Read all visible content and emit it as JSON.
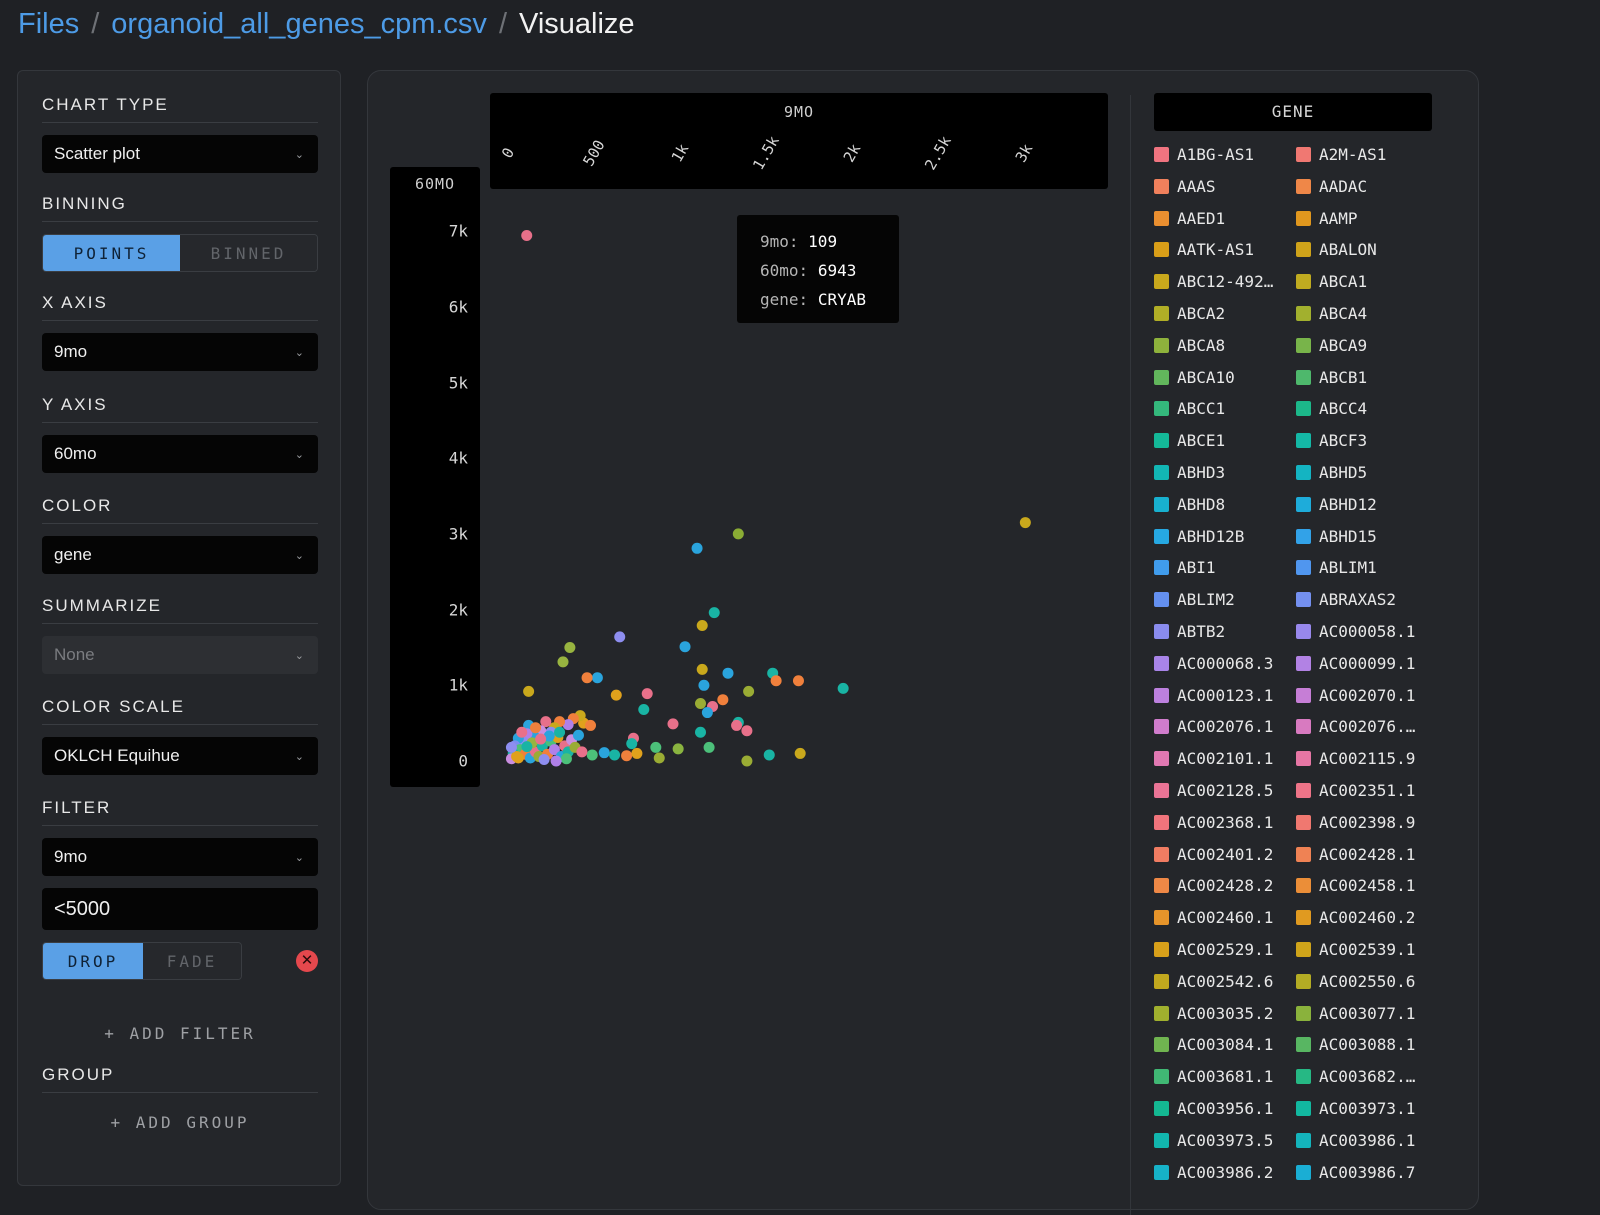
{
  "breadcrumb": {
    "files": "Files",
    "sep1": "/",
    "file": "organoid_all_genes_cpm.csv",
    "sep2": "/",
    "current": "Visualize"
  },
  "sidebar": {
    "chart_type": {
      "title": "CHART TYPE",
      "value": "Scatter plot"
    },
    "binning": {
      "title": "BINNING",
      "options": [
        "POINTS",
        "BINNED"
      ],
      "selected": "POINTS"
    },
    "x_axis": {
      "title": "X AXIS",
      "value": "9mo"
    },
    "y_axis": {
      "title": "Y AXIS",
      "value": "60mo"
    },
    "color": {
      "title": "COLOR",
      "value": "gene"
    },
    "summarize": {
      "title": "SUMMARIZE",
      "value": "None"
    },
    "color_scale": {
      "title": "COLOR SCALE",
      "value": "OKLCH Equihue"
    },
    "filter": {
      "title": "FILTER",
      "column": "9mo",
      "expression": "<5000",
      "modes": [
        "DROP",
        "FADE"
      ],
      "selected_mode": "DROP",
      "remove_icon": "close-icon",
      "add_label": "+ ADD FILTER"
    },
    "group": {
      "title": "GROUP",
      "add_label": "+ ADD GROUP"
    }
  },
  "tooltip": {
    "k1": "9mo:",
    "v1": "109",
    "k2": "60mo:",
    "v2": "6943",
    "k3": "gene:",
    "v3": "CRYAB"
  },
  "chart_data": {
    "type": "scatter",
    "xlabel": "9MO",
    "ylabel": "60MO",
    "xlim": [
      0,
      3200
    ],
    "ylim": [
      0,
      7200
    ],
    "x_ticks": [
      "0",
      "500",
      "1k",
      "1.5k",
      "2k",
      "2.5k",
      "3k"
    ],
    "y_ticks": [
      "7k",
      "6k",
      "5k",
      "4k",
      "3k",
      "2k",
      "1k",
      "0"
    ],
    "points": [
      {
        "x": 109,
        "y": 6943,
        "color": "#e8708a"
      },
      {
        "x": 3010,
        "y": 3150,
        "color": "#c9a81c"
      },
      {
        "x": 1340,
        "y": 3000,
        "color": "#8aac34"
      },
      {
        "x": 1100,
        "y": 2810,
        "color": "#2aa4dd"
      },
      {
        "x": 1200,
        "y": 1960,
        "color": "#19b4a4"
      },
      {
        "x": 1130,
        "y": 1790,
        "color": "#c9a81c"
      },
      {
        "x": 650,
        "y": 1640,
        "color": "#8e8ef0"
      },
      {
        "x": 1030,
        "y": 1510,
        "color": "#2aa4dd"
      },
      {
        "x": 360,
        "y": 1500,
        "color": "#98b440"
      },
      {
        "x": 320,
        "y": 1310,
        "color": "#98b440"
      },
      {
        "x": 1540,
        "y": 1160,
        "color": "#19b4a4"
      },
      {
        "x": 1950,
        "y": 960,
        "color": "#19b4a4"
      },
      {
        "x": 1130,
        "y": 1210,
        "color": "#c9a81c"
      },
      {
        "x": 1280,
        "y": 1160,
        "color": "#2aa4dd"
      },
      {
        "x": 520,
        "y": 1100,
        "color": "#2aa4dd"
      },
      {
        "x": 1690,
        "y": 1060,
        "color": "#f0803c"
      },
      {
        "x": 1560,
        "y": 1060,
        "color": "#f0803c"
      },
      {
        "x": 1140,
        "y": 1000,
        "color": "#2aa4dd"
      },
      {
        "x": 1400,
        "y": 920,
        "color": "#9aac34"
      },
      {
        "x": 460,
        "y": 1100,
        "color": "#f0803c"
      },
      {
        "x": 810,
        "y": 890,
        "color": "#e8708a"
      },
      {
        "x": 630,
        "y": 870,
        "color": "#e0a11c"
      },
      {
        "x": 120,
        "y": 920,
        "color": "#c9a81c"
      },
      {
        "x": 1250,
        "y": 810,
        "color": "#f0803c"
      },
      {
        "x": 790,
        "y": 680,
        "color": "#19b4a4"
      },
      {
        "x": 1120,
        "y": 760,
        "color": "#9aac34"
      },
      {
        "x": 1190,
        "y": 720,
        "color": "#e8708a"
      },
      {
        "x": 1160,
        "y": 640,
        "color": "#2aa4dd"
      },
      {
        "x": 960,
        "y": 490,
        "color": "#e8708a"
      },
      {
        "x": 1340,
        "y": 510,
        "color": "#19b4a4"
      },
      {
        "x": 1330,
        "y": 470,
        "color": "#e8708a"
      },
      {
        "x": 1120,
        "y": 380,
        "color": "#19b4a4"
      },
      {
        "x": 1390,
        "y": 400,
        "color": "#e8708a"
      },
      {
        "x": 730,
        "y": 300,
        "color": "#e8708a"
      },
      {
        "x": 720,
        "y": 230,
        "color": "#19b4a4"
      },
      {
        "x": 860,
        "y": 180,
        "color": "#4cc07a"
      },
      {
        "x": 990,
        "y": 160,
        "color": "#8ab440"
      },
      {
        "x": 1170,
        "y": 180,
        "color": "#4cc07a"
      },
      {
        "x": 690,
        "y": 70,
        "color": "#f0803c"
      },
      {
        "x": 750,
        "y": 100,
        "color": "#e0a11c"
      },
      {
        "x": 880,
        "y": 40,
        "color": "#9aac34"
      },
      {
        "x": 1390,
        "y": 0,
        "color": "#9aac34"
      },
      {
        "x": 1520,
        "y": 80,
        "color": "#19b4a4"
      },
      {
        "x": 1700,
        "y": 100,
        "color": "#c9a81c"
      },
      {
        "x": 560,
        "y": 110,
        "color": "#2aa4dd"
      },
      {
        "x": 620,
        "y": 80,
        "color": "#19b4a4"
      },
      {
        "x": 490,
        "y": 80,
        "color": "#4cc07a"
      },
      {
        "x": 440,
        "y": 500,
        "color": "#e0a11c"
      },
      {
        "x": 480,
        "y": 470,
        "color": "#f0803c"
      },
      {
        "x": 420,
        "y": 600,
        "color": "#c9a81c"
      },
      {
        "x": 380,
        "y": 560,
        "color": "#f0803c"
      },
      {
        "x": 350,
        "y": 480,
        "color": "#b080e8"
      },
      {
        "x": 300,
        "y": 520,
        "color": "#f0803c"
      },
      {
        "x": 270,
        "y": 440,
        "color": "#c9a81c"
      },
      {
        "x": 250,
        "y": 380,
        "color": "#8e8ef0"
      },
      {
        "x": 220,
        "y": 520,
        "color": "#e8708a"
      },
      {
        "x": 190,
        "y": 400,
        "color": "#c98ee0"
      },
      {
        "x": 150,
        "y": 330,
        "color": "#2aa4dd"
      },
      {
        "x": 120,
        "y": 470,
        "color": "#2aa4dd"
      },
      {
        "x": 110,
        "y": 360,
        "color": "#b080e8"
      },
      {
        "x": 90,
        "y": 250,
        "color": "#8e8ef0"
      },
      {
        "x": 60,
        "y": 300,
        "color": "#2aa4dd"
      },
      {
        "x": 40,
        "y": 200,
        "color": "#7b8ef0"
      },
      {
        "x": 70,
        "y": 150,
        "color": "#4cc07a"
      },
      {
        "x": 30,
        "y": 100,
        "color": "#19b4a4"
      },
      {
        "x": 20,
        "y": 30,
        "color": "#c98ee0"
      },
      {
        "x": 50,
        "y": 60,
        "color": "#e0a11c"
      },
      {
        "x": 100,
        "y": 90,
        "color": "#f0803c"
      },
      {
        "x": 130,
        "y": 40,
        "color": "#2aa4dd"
      },
      {
        "x": 160,
        "y": 120,
        "color": "#e8708a"
      },
      {
        "x": 180,
        "y": 60,
        "color": "#9aac34"
      },
      {
        "x": 200,
        "y": 200,
        "color": "#19b4a4"
      },
      {
        "x": 230,
        "y": 90,
        "color": "#f0803c"
      },
      {
        "x": 250,
        "y": 260,
        "color": "#4cc07a"
      },
      {
        "x": 270,
        "y": 150,
        "color": "#b080e8"
      },
      {
        "x": 290,
        "y": 310,
        "color": "#e0a11c"
      },
      {
        "x": 310,
        "y": 60,
        "color": "#2aa4dd"
      },
      {
        "x": 330,
        "y": 200,
        "color": "#e8708a"
      },
      {
        "x": 350,
        "y": 120,
        "color": "#19b4a4"
      },
      {
        "x": 370,
        "y": 280,
        "color": "#c98ee0"
      },
      {
        "x": 390,
        "y": 180,
        "color": "#9aac34"
      },
      {
        "x": 410,
        "y": 340,
        "color": "#2aa4dd"
      },
      {
        "x": 430,
        "y": 120,
        "color": "#e8708a"
      },
      {
        "x": 210,
        "y": 20,
        "color": "#8e8ef0"
      },
      {
        "x": 140,
        "y": 240,
        "color": "#98b440"
      },
      {
        "x": 80,
        "y": 380,
        "color": "#e8708a"
      },
      {
        "x": 160,
        "y": 440,
        "color": "#f0803c"
      },
      {
        "x": 300,
        "y": 380,
        "color": "#19b4a4"
      },
      {
        "x": 340,
        "y": 30,
        "color": "#4cc07a"
      },
      {
        "x": 280,
        "y": 0,
        "color": "#b080e8"
      },
      {
        "x": 240,
        "y": 330,
        "color": "#2aa4dd"
      },
      {
        "x": 60,
        "y": 40,
        "color": "#e0a11c"
      },
      {
        "x": 20,
        "y": 180,
        "color": "#8e8ef0"
      },
      {
        "x": 110,
        "y": 190,
        "color": "#19b4a4"
      },
      {
        "x": 190,
        "y": 290,
        "color": "#e8708a"
      }
    ]
  },
  "legend": {
    "title": "GENE",
    "items": [
      {
        "label": "A1BG-AS1",
        "color": "#f07480"
      },
      {
        "label": "A2M-AS1",
        "color": "#f07872"
      },
      {
        "label": "AAAS",
        "color": "#f0805c"
      },
      {
        "label": "AADAC",
        "color": "#ef8748"
      },
      {
        "label": "AAED1",
        "color": "#ea8f30"
      },
      {
        "label": "AAMP",
        "color": "#e0971e"
      },
      {
        "label": "AATK-AS1",
        "color": "#d99e18"
      },
      {
        "label": "ABALON",
        "color": "#cfa31a"
      },
      {
        "label": "ABC12-492…",
        "color": "#c9a81c"
      },
      {
        "label": "ABCA1",
        "color": "#c0ab20"
      },
      {
        "label": "ABCA2",
        "color": "#b1ae26"
      },
      {
        "label": "ABCA4",
        "color": "#a2b02e"
      },
      {
        "label": "ABCA8",
        "color": "#8eb23c"
      },
      {
        "label": "ABCA9",
        "color": "#78b44a"
      },
      {
        "label": "ABCA10",
        "color": "#62b65c"
      },
      {
        "label": "ABCB1",
        "color": "#4eb86c"
      },
      {
        "label": "ABCC1",
        "color": "#34b87c"
      },
      {
        "label": "ABCC4",
        "color": "#1cb88a"
      },
      {
        "label": "ABCE1",
        "color": "#14b898"
      },
      {
        "label": "ABCF3",
        "color": "#14b8a6"
      },
      {
        "label": "ABHD3",
        "color": "#12b6b4"
      },
      {
        "label": "ABHD5",
        "color": "#14b4c2"
      },
      {
        "label": "ABHD8",
        "color": "#18b0cf"
      },
      {
        "label": "ABHD12",
        "color": "#1eacda"
      },
      {
        "label": "ABHD12B",
        "color": "#26a8e2"
      },
      {
        "label": "ABHD15",
        "color": "#32a2e8"
      },
      {
        "label": "ABI1",
        "color": "#409cec"
      },
      {
        "label": "ABLIM1",
        "color": "#5096ef"
      },
      {
        "label": "ABLIM2",
        "color": "#6490f0"
      },
      {
        "label": "ABRAXAS2",
        "color": "#7490f0"
      },
      {
        "label": "ABTB2",
        "color": "#8a8cee"
      },
      {
        "label": "AC000058.1",
        "color": "#9888ec"
      },
      {
        "label": "AC000068.3",
        "color": "#a884e8"
      },
      {
        "label": "AC000099.1",
        "color": "#b282e4"
      },
      {
        "label": "AC000123.1",
        "color": "#bc80de"
      },
      {
        "label": "AC002070.1",
        "color": "#c67ed6"
      },
      {
        "label": "AC002076.1",
        "color": "#d07ccc"
      },
      {
        "label": "AC002076.…",
        "color": "#d87ac0"
      },
      {
        "label": "AC002101.1",
        "color": "#e078b2"
      },
      {
        "label": "AC002115.9",
        "color": "#e676a4"
      },
      {
        "label": "AC002128.5",
        "color": "#ea7496"
      },
      {
        "label": "AC002351.1",
        "color": "#ee7488"
      },
      {
        "label": "AC002368.1",
        "color": "#f0747c"
      },
      {
        "label": "AC002398.9",
        "color": "#f07870"
      },
      {
        "label": "AC002401.2",
        "color": "#f07c62"
      },
      {
        "label": "AC002428.1",
        "color": "#ef8254"
      },
      {
        "label": "AC002428.2",
        "color": "#ee8846"
      },
      {
        "label": "AC002458.1",
        "color": "#eb8e38"
      },
      {
        "label": "AC002460.1",
        "color": "#e6942a"
      },
      {
        "label": "AC002460.2",
        "color": "#e09a20"
      },
      {
        "label": "AC002529.1",
        "color": "#d8a01a"
      },
      {
        "label": "AC002539.1",
        "color": "#cfa41a"
      },
      {
        "label": "AC002542.6",
        "color": "#c2a81e"
      },
      {
        "label": "AC002550.6",
        "color": "#b4ac24"
      },
      {
        "label": "AC003035.2",
        "color": "#a0b02e"
      },
      {
        "label": "AC003077.1",
        "color": "#8ab23c"
      },
      {
        "label": "AC003084.1",
        "color": "#70b450"
      },
      {
        "label": "AC003088.1",
        "color": "#58b662"
      },
      {
        "label": "AC003681.1",
        "color": "#40b874"
      },
      {
        "label": "AC003682.…",
        "color": "#26b884"
      },
      {
        "label": "AC003956.1",
        "color": "#14b892"
      },
      {
        "label": "AC003973.1",
        "color": "#12b8a0"
      },
      {
        "label": "AC003973.5",
        "color": "#12b6ae"
      },
      {
        "label": "AC003986.1",
        "color": "#14b4bc"
      },
      {
        "label": "AC003986.2",
        "color": "#16b2c8"
      },
      {
        "label": "AC003986.7",
        "color": "#1aaed4"
      }
    ]
  }
}
